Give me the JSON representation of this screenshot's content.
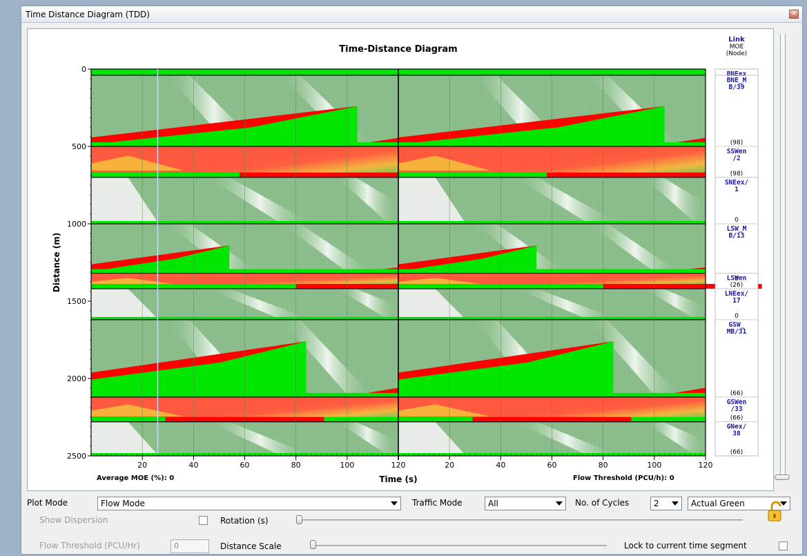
{
  "window": {
    "title": "Time Distance Diagram (TDD)",
    "close_glyph": "✕"
  },
  "chart_data": {
    "type": "heatmap",
    "title": "Time-Distance Diagram",
    "xlabel": "Time (s)",
    "ylabel": "Distance (m)",
    "x_ticks": [
      "20",
      "40",
      "60",
      "80",
      "100",
      "120",
      "20",
      "40",
      "60",
      "80",
      "100",
      "120"
    ],
    "y_ticks": [
      "0",
      "500",
      "1000",
      "1500",
      "2000",
      "2500"
    ],
    "ylim": [
      0,
      2500
    ],
    "cycles": 2,
    "cycle_length": 120,
    "footer_left": "Average MOE (%):",
    "footer_left_value": "0",
    "footer_right": "Flow Threshold (PCU/h):",
    "footer_right_value": "0",
    "side_header": [
      "Link",
      "MOE",
      "(Node)"
    ],
    "links": [
      {
        "name": "BNEex",
        "moe": "",
        "y0": 0,
        "y1": 40,
        "type": "exit"
      },
      {
        "name": "BNE_M\nB/39",
        "moe": "(98)",
        "y0": 40,
        "y1": 500,
        "type": "main",
        "q_start": 460,
        "q_top": 240,
        "q_end_t": 104
      },
      {
        "name": "SSWen\n/2",
        "moe": "(98)",
        "y0": 500,
        "y1": 700,
        "type": "entry",
        "red_start": 58
      },
      {
        "name": "SNEex/\n1",
        "moe": "0",
        "y0": 700,
        "y1": 1000,
        "type": "exit"
      },
      {
        "name": "LSW_M\nB/13",
        "moe": "",
        "y0": 1000,
        "y1": 1320,
        "type": "main",
        "q_start": 1280,
        "q_top": 1140,
        "q_end_t": 54
      },
      {
        "name": "LSWen",
        "moe": "0\n(26)",
        "y0": 1320,
        "y1": 1420,
        "type": "entry",
        "red_start": 80
      },
      {
        "name": "LNEex/\n17",
        "moe": "0",
        "y0": 1420,
        "y1": 1620,
        "type": "exit"
      },
      {
        "name": "GSW_\nMB/31",
        "moe": "(66)",
        "y0": 1620,
        "y1": 2120,
        "type": "main",
        "q_start": 1980,
        "q_top": 1760,
        "q_end_t": 84
      },
      {
        "name": "GSWen\n/33",
        "moe": "(66)",
        "y0": 2120,
        "y1": 2280,
        "type": "entry",
        "red_start": 29
      },
      {
        "name": "GNex/\n38",
        "moe": "(66)",
        "y0": 2280,
        "y1": 2500,
        "type": "exit"
      }
    ],
    "colors": {
      "green": "#00e600",
      "red": "#ff0000",
      "bg_green": "#8fbf8f",
      "grid": "#4d8a4d",
      "link_text": "#1a1aa0"
    }
  },
  "controls": {
    "plot_mode_label": "Plot Mode",
    "plot_mode_value": "Flow Mode",
    "traffic_mode_label": "Traffic Mode",
    "traffic_mode_value": "All",
    "cycles_label": "No. of Cycles",
    "cycles_value": "2",
    "green_value": "Actual Green",
    "show_dispersion_label": "Show Dispersion",
    "rotation_label": "Rotation (s)",
    "flow_threshold_label": "Flow Threshold (PCU/Hr)",
    "flow_threshold_value": "0",
    "distance_scale_label": "Distance Scale",
    "lock_label": "Lock to current time segment",
    "lock_icon": "unlocked-padlock-icon"
  }
}
